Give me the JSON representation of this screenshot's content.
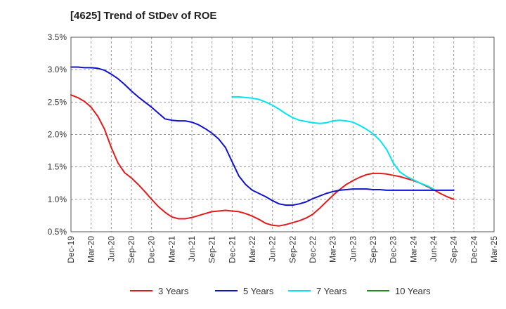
{
  "chart_data": {
    "type": "line",
    "title": "[4625]  Trend of StDev of ROE",
    "xlabel": "",
    "ylabel": "",
    "x_ticks": [
      "Dec-19",
      "Mar-20",
      "Jun-20",
      "Sep-20",
      "Dec-20",
      "Mar-21",
      "Jun-21",
      "Sep-21",
      "Dec-21",
      "Mar-22",
      "Jun-22",
      "Sep-22",
      "Dec-22",
      "Mar-23",
      "Jun-23",
      "Sep-23",
      "Dec-23",
      "Mar-24",
      "Jun-24",
      "Sep-24",
      "Dec-24",
      "Mar-25"
    ],
    "y_ticks": [
      "0.5%",
      "1.0%",
      "1.5%",
      "2.0%",
      "2.5%",
      "3.0%",
      "3.5%"
    ],
    "ylim": [
      0.5,
      3.5
    ],
    "grid": true,
    "legend_position": "bottom",
    "series": [
      {
        "name": "3 Years",
        "color": "#e41a1a",
        "values": [
          [
            "Dec-19",
            2.61
          ],
          [
            "Jan-20",
            2.57
          ],
          [
            "Feb-20",
            2.51
          ],
          [
            "Mar-20",
            2.42
          ],
          [
            "Apr-20",
            2.28
          ],
          [
            "May-20",
            2.08
          ],
          [
            "Jun-20",
            1.8
          ],
          [
            "Jul-20",
            1.56
          ],
          [
            "Aug-20",
            1.41
          ],
          [
            "Sep-20",
            1.33
          ],
          [
            "Oct-20",
            1.23
          ],
          [
            "Nov-20",
            1.12
          ],
          [
            "Dec-20",
            1.0
          ],
          [
            "Jan-21",
            0.89
          ],
          [
            "Feb-21",
            0.8
          ],
          [
            "Mar-21",
            0.73
          ],
          [
            "Apr-21",
            0.7
          ],
          [
            "May-21",
            0.7
          ],
          [
            "Jun-21",
            0.72
          ],
          [
            "Jul-21",
            0.75
          ],
          [
            "Aug-21",
            0.78
          ],
          [
            "Sep-21",
            0.81
          ],
          [
            "Oct-21",
            0.82
          ],
          [
            "Nov-21",
            0.83
          ],
          [
            "Dec-21",
            0.82
          ],
          [
            "Jan-22",
            0.81
          ],
          [
            "Feb-22",
            0.78
          ],
          [
            "Mar-22",
            0.74
          ],
          [
            "Apr-22",
            0.69
          ],
          [
            "May-22",
            0.63
          ],
          [
            "Jun-22",
            0.6
          ],
          [
            "Jul-22",
            0.59
          ],
          [
            "Aug-22",
            0.61
          ],
          [
            "Sep-22",
            0.64
          ],
          [
            "Oct-22",
            0.67
          ],
          [
            "Nov-22",
            0.71
          ],
          [
            "Dec-22",
            0.77
          ],
          [
            "Jan-23",
            0.86
          ],
          [
            "Feb-23",
            0.96
          ],
          [
            "Mar-23",
            1.06
          ],
          [
            "Apr-23",
            1.15
          ],
          [
            "May-23",
            1.23
          ],
          [
            "Jun-23",
            1.29
          ],
          [
            "Jul-23",
            1.34
          ],
          [
            "Aug-23",
            1.38
          ],
          [
            "Sep-23",
            1.4
          ],
          [
            "Oct-23",
            1.4
          ],
          [
            "Nov-23",
            1.39
          ],
          [
            "Dec-23",
            1.37
          ],
          [
            "Jan-24",
            1.35
          ],
          [
            "Feb-24",
            1.32
          ],
          [
            "Mar-24",
            1.29
          ],
          [
            "Apr-24",
            1.25
          ],
          [
            "May-24",
            1.2
          ],
          [
            "Jun-24",
            1.15
          ],
          [
            "Jul-24",
            1.09
          ],
          [
            "Aug-24",
            1.04
          ],
          [
            "Sep-24",
            1.0
          ]
        ]
      },
      {
        "name": "5 Years",
        "color": "#1010d0",
        "values": [
          [
            "Dec-19",
            3.04
          ],
          [
            "Jan-20",
            3.04
          ],
          [
            "Feb-20",
            3.03
          ],
          [
            "Mar-20",
            3.03
          ],
          [
            "Apr-20",
            3.02
          ],
          [
            "May-20",
            2.99
          ],
          [
            "Jun-20",
            2.93
          ],
          [
            "Jul-20",
            2.86
          ],
          [
            "Aug-20",
            2.77
          ],
          [
            "Sep-20",
            2.67
          ],
          [
            "Oct-20",
            2.58
          ],
          [
            "Nov-20",
            2.5
          ],
          [
            "Dec-20",
            2.42
          ],
          [
            "Jan-21",
            2.33
          ],
          [
            "Feb-21",
            2.24
          ],
          [
            "Mar-21",
            2.22
          ],
          [
            "Apr-21",
            2.21
          ],
          [
            "May-21",
            2.21
          ],
          [
            "Jun-21",
            2.19
          ],
          [
            "Jul-21",
            2.15
          ],
          [
            "Aug-21",
            2.09
          ],
          [
            "Sep-21",
            2.02
          ],
          [
            "Oct-21",
            1.93
          ],
          [
            "Nov-21",
            1.8
          ],
          [
            "Dec-21",
            1.58
          ],
          [
            "Jan-22",
            1.36
          ],
          [
            "Feb-22",
            1.23
          ],
          [
            "Mar-22",
            1.14
          ],
          [
            "Apr-22",
            1.09
          ],
          [
            "May-22",
            1.04
          ],
          [
            "Jun-22",
            0.98
          ],
          [
            "Jul-22",
            0.93
          ],
          [
            "Aug-22",
            0.91
          ],
          [
            "Sep-22",
            0.91
          ],
          [
            "Oct-22",
            0.93
          ],
          [
            "Nov-22",
            0.96
          ],
          [
            "Dec-22",
            1.01
          ],
          [
            "Jan-23",
            1.05
          ],
          [
            "Feb-23",
            1.09
          ],
          [
            "Mar-23",
            1.12
          ],
          [
            "Apr-23",
            1.14
          ],
          [
            "May-23",
            1.15
          ],
          [
            "Jun-23",
            1.16
          ],
          [
            "Jul-23",
            1.16
          ],
          [
            "Aug-23",
            1.16
          ],
          [
            "Sep-23",
            1.15
          ],
          [
            "Oct-23",
            1.15
          ],
          [
            "Nov-23",
            1.14
          ],
          [
            "Dec-23",
            1.14
          ],
          [
            "Jan-24",
            1.14
          ],
          [
            "Feb-24",
            1.14
          ],
          [
            "Mar-24",
            1.14
          ],
          [
            "Apr-24",
            1.14
          ],
          [
            "May-24",
            1.14
          ],
          [
            "Jun-24",
            1.14
          ],
          [
            "Jul-24",
            1.14
          ],
          [
            "Aug-24",
            1.14
          ],
          [
            "Sep-24",
            1.14
          ]
        ]
      },
      {
        "name": "7 Years",
        "color": "#00e5ee",
        "values": [
          [
            "Dec-21",
            2.58
          ],
          [
            "Jan-22",
            2.58
          ],
          [
            "Feb-22",
            2.57
          ],
          [
            "Mar-22",
            2.56
          ],
          [
            "Apr-22",
            2.54
          ],
          [
            "May-22",
            2.5
          ],
          [
            "Jun-22",
            2.45
          ],
          [
            "Jul-22",
            2.39
          ],
          [
            "Aug-22",
            2.32
          ],
          [
            "Sep-22",
            2.26
          ],
          [
            "Oct-22",
            2.22
          ],
          [
            "Nov-22",
            2.2
          ],
          [
            "Dec-22",
            2.18
          ],
          [
            "Jan-23",
            2.17
          ],
          [
            "Feb-23",
            2.18
          ],
          [
            "Mar-23",
            2.21
          ],
          [
            "Apr-23",
            2.22
          ],
          [
            "May-23",
            2.21
          ],
          [
            "Jun-23",
            2.19
          ],
          [
            "Jul-23",
            2.14
          ],
          [
            "Aug-23",
            2.08
          ],
          [
            "Sep-23",
            2.01
          ],
          [
            "Oct-23",
            1.91
          ],
          [
            "Nov-23",
            1.77
          ],
          [
            "Dec-23",
            1.56
          ],
          [
            "Jan-24",
            1.42
          ],
          [
            "Feb-24",
            1.35
          ],
          [
            "Mar-24",
            1.3
          ],
          [
            "Apr-24",
            1.25
          ],
          [
            "May-24",
            1.21
          ],
          [
            "Jun-24",
            1.16
          ]
        ]
      },
      {
        "name": "10 Years",
        "color": "#228b22",
        "values": []
      }
    ]
  }
}
